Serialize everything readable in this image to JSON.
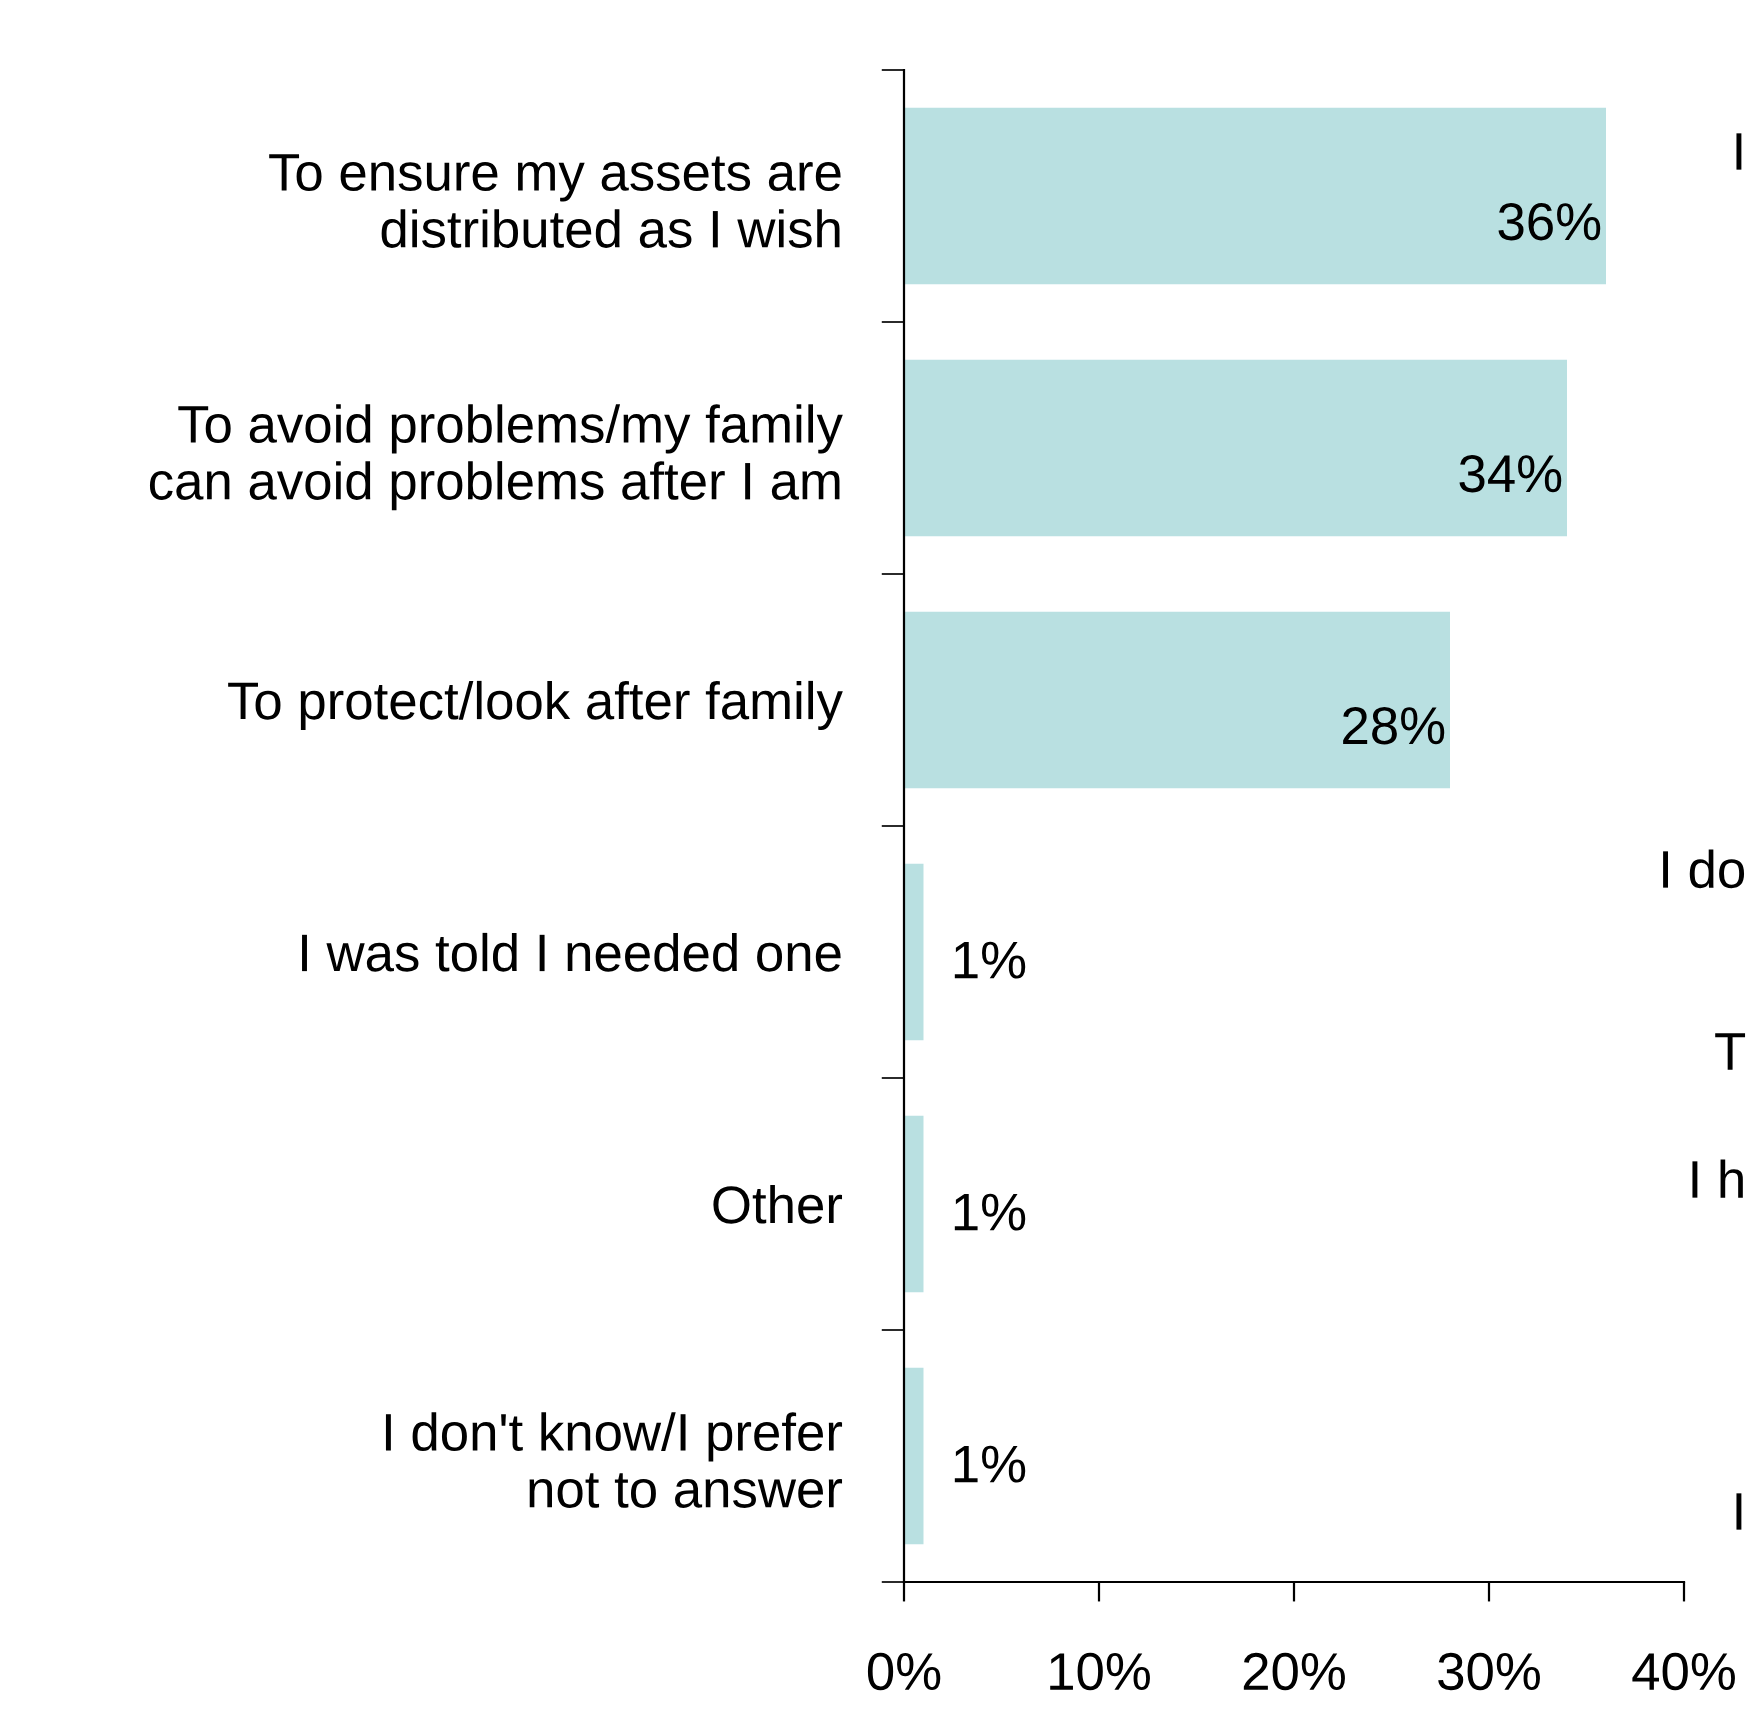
{
  "chart_data": {
    "type": "bar",
    "orientation": "horizontal",
    "categories": [
      "To ensure my assets are\ndistributed as I wish",
      "To avoid problems/my family\ncan avoid problems after I am",
      "To protect/look after family",
      "I was told I needed one",
      "Other",
      "I don't know/I prefer\nnot to answer"
    ],
    "values": [
      36,
      34,
      28,
      1,
      1,
      1
    ],
    "color": "#b9e0e1",
    "value_labels": [
      "36%",
      "34%",
      "28%",
      "1%",
      "1%",
      "1%"
    ],
    "xlim": [
      0,
      40
    ],
    "xticks": [
      {
        "value": 0,
        "label": "0%"
      },
      {
        "value": 10,
        "label": "10%"
      },
      {
        "value": 20,
        "label": "20%"
      },
      {
        "value": 30,
        "label": "30%"
      },
      {
        "value": 40,
        "label": "40%"
      }
    ],
    "grid": false,
    "legend": false,
    "annotations": [
      "I",
      "I do",
      "T",
      "I h",
      "I"
    ]
  }
}
